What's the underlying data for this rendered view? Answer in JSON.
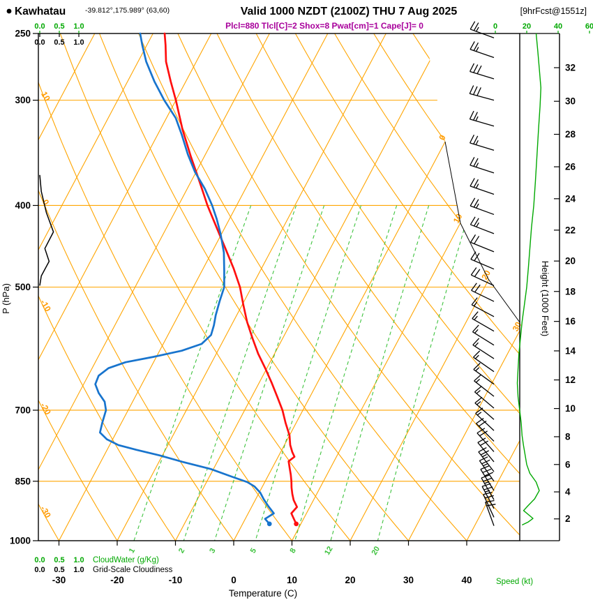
{
  "header": {
    "station": "Kawhatau",
    "coords": "-39.812°,175.989° (63,60)",
    "valid": "Valid 1000 NZDT (2100Z) THU 7 Aug 2025",
    "forecast_info": "[9hrFcst@1551z]",
    "params": "Plcl=880 Tlcl[C]=2 Shox=8 Pwat[cm]=1 Cape[J]= 0"
  },
  "axes": {
    "pressure_label": "P (hPa)",
    "pressure_ticks": [
      250,
      300,
      400,
      500,
      700,
      850,
      1000
    ],
    "temp_label": "Temperature (C)",
    "temp_ticks": [
      -30,
      -20,
      -10,
      0,
      10,
      20,
      30,
      40
    ],
    "height_label": "Height (1000 Feet)",
    "height_ticks": [
      2,
      4,
      6,
      8,
      10,
      12,
      14,
      16,
      18,
      20,
      22,
      24,
      26,
      28,
      30,
      32
    ],
    "speed_label": "Speed (kt)",
    "speed_ticks": [
      0,
      20,
      40,
      60
    ],
    "cloudwater_label": "CloudWater (g/Kg)",
    "cloudwater_ticks": [
      "0.0",
      "0.5",
      "1.0"
    ],
    "cloudiness_label": "Grid-Scale Cloudiness",
    "cloudiness_ticks": [
      "0.0",
      "0.5",
      "1.0"
    ]
  },
  "grid": {
    "isobars": [
      300,
      400,
      500,
      700,
      850
    ],
    "isotherm_min": -120,
    "isotherm_max": 40,
    "isotherm_step": 10,
    "isotherm_labels": [
      0,
      10,
      20,
      30
    ],
    "adiabat_min": -40,
    "adiabat_max": 150,
    "adiabat_step": 10,
    "adiabat_labels": [
      10,
      0,
      -10,
      -20,
      -30
    ],
    "mixing_ratio_lines": [
      1,
      2,
      3,
      5,
      8,
      12,
      20
    ]
  },
  "colors": {
    "grid_orange": "#FFA500",
    "mixing_green": "#3DC23D",
    "green": "#00A800",
    "temperature_red": "#FF0F0F",
    "dewpoint_blue": "#1874CD",
    "param_purple": "#A8009B"
  },
  "chart_data": {
    "type": "skew-t log-p sounding",
    "pressure_hpa_range": [
      1000,
      250
    ],
    "temperature_axis_range_c": [
      -35,
      45
    ],
    "temperature_profile_c": [
      [
        955,
        9.2
      ],
      [
        940,
        8.2
      ],
      [
        928,
        7.4
      ],
      [
        912,
        7.8
      ],
      [
        895,
        6.6
      ],
      [
        880,
        5.8
      ],
      [
        865,
        5.1
      ],
      [
        850,
        4.5
      ],
      [
        835,
        3.8
      ],
      [
        820,
        3.0
      ],
      [
        805,
        2.2
      ],
      [
        795,
        2.8
      ],
      [
        785,
        2.0
      ],
      [
        770,
        1.0
      ],
      [
        750,
        0.0
      ],
      [
        725,
        -1.8
      ],
      [
        700,
        -3.5
      ],
      [
        675,
        -5.6
      ],
      [
        650,
        -7.8
      ],
      [
        625,
        -10.2
      ],
      [
        600,
        -12.8
      ],
      [
        575,
        -15.2
      ],
      [
        550,
        -17.6
      ],
      [
        525,
        -19.8
      ],
      [
        500,
        -22.0
      ],
      [
        475,
        -24.8
      ],
      [
        450,
        -28.0
      ],
      [
        425,
        -31.4
      ],
      [
        400,
        -35.0
      ],
      [
        375,
        -38.5
      ],
      [
        350,
        -42.3
      ],
      [
        325,
        -46.2
      ],
      [
        300,
        -50.0
      ],
      [
        285,
        -52.6
      ],
      [
        270,
        -55.2
      ],
      [
        258,
        -56.8
      ],
      [
        250,
        -58.0
      ]
    ],
    "dewpoint_profile_c": [
      [
        955,
        4.6
      ],
      [
        942,
        3.4
      ],
      [
        928,
        4.4
      ],
      [
        910,
        2.8
      ],
      [
        893,
        1.4
      ],
      [
        877,
        0.2
      ],
      [
        862,
        -1.4
      ],
      [
        852,
        -3.0
      ],
      [
        840,
        -6.0
      ],
      [
        822,
        -10.5
      ],
      [
        806,
        -16.0
      ],
      [
        792,
        -20.5
      ],
      [
        780,
        -25.0
      ],
      [
        770,
        -28.5
      ],
      [
        758,
        -31.0
      ],
      [
        744,
        -32.8
      ],
      [
        724,
        -33.3
      ],
      [
        700,
        -33.8
      ],
      [
        684,
        -34.8
      ],
      [
        668,
        -36.6
      ],
      [
        652,
        -38.0
      ],
      [
        637,
        -38.2
      ],
      [
        624,
        -37.2
      ],
      [
        614,
        -34.8
      ],
      [
        605,
        -30.5
      ],
      [
        595,
        -26.2
      ],
      [
        584,
        -23.4
      ],
      [
        570,
        -22.6
      ],
      [
        555,
        -23.0
      ],
      [
        540,
        -23.6
      ],
      [
        520,
        -24.2
      ],
      [
        500,
        -24.7
      ],
      [
        478,
        -26.2
      ],
      [
        455,
        -27.9
      ],
      [
        432,
        -30.2
      ],
      [
        415,
        -32.2
      ],
      [
        400,
        -34.2
      ],
      [
        382,
        -37.0
      ],
      [
        365,
        -40.2
      ],
      [
        348,
        -43.0
      ],
      [
        330,
        -45.8
      ],
      [
        315,
        -48.4
      ],
      [
        300,
        -52.0
      ],
      [
        285,
        -55.4
      ],
      [
        270,
        -58.6
      ],
      [
        258,
        -60.8
      ],
      [
        250,
        -62.2
      ]
    ],
    "wind_speed_profile_kt": [
      [
        958,
        17
      ],
      [
        950,
        21
      ],
      [
        941,
        24
      ],
      [
        931,
        21
      ],
      [
        921,
        18
      ],
      [
        908,
        21
      ],
      [
        892,
        25
      ],
      [
        872,
        28
      ],
      [
        852,
        26
      ],
      [
        832,
        22
      ],
      [
        812,
        20
      ],
      [
        792,
        19
      ],
      [
        772,
        18
      ],
      [
        750,
        17
      ],
      [
        725,
        16.5
      ],
      [
        700,
        15.5
      ],
      [
        675,
        14.5
      ],
      [
        650,
        14
      ],
      [
        625,
        14.5
      ],
      [
        600,
        15
      ],
      [
        575,
        16
      ],
      [
        550,
        17
      ],
      [
        525,
        18.5
      ],
      [
        500,
        20
      ],
      [
        475,
        21
      ],
      [
        450,
        22
      ],
      [
        425,
        23
      ],
      [
        400,
        24.5
      ],
      [
        375,
        25.5
      ],
      [
        350,
        26.5
      ],
      [
        325,
        27.5
      ],
      [
        305,
        28.5
      ],
      [
        290,
        29
      ],
      [
        275,
        28
      ],
      [
        262,
        27
      ],
      [
        250,
        26
      ]
    ],
    "wind_barbs": [
      [
        960,
        18,
        340
      ],
      [
        938,
        22,
        335
      ],
      [
        916,
        24,
        332
      ],
      [
        894,
        26,
        330
      ],
      [
        872,
        28,
        328
      ],
      [
        850,
        26,
        325
      ],
      [
        828,
        23,
        322
      ],
      [
        806,
        21,
        320
      ],
      [
        784,
        19,
        318
      ],
      [
        762,
        18,
        315
      ],
      [
        740,
        17,
        313
      ],
      [
        718,
        16,
        311
      ],
      [
        696,
        15,
        310
      ],
      [
        674,
        15,
        308
      ],
      [
        652,
        14,
        306
      ],
      [
        630,
        14,
        305
      ],
      [
        608,
        15,
        303
      ],
      [
        586,
        15,
        302
      ],
      [
        564,
        16,
        300
      ],
      [
        542,
        17,
        298
      ],
      [
        520,
        18,
        296
      ],
      [
        498,
        20,
        295
      ],
      [
        476,
        21,
        293
      ],
      [
        454,
        22,
        292
      ],
      [
        432,
        23,
        291
      ],
      [
        410,
        24,
        290
      ],
      [
        388,
        25,
        289
      ],
      [
        366,
        26,
        288
      ],
      [
        344,
        26,
        287
      ],
      [
        322,
        27,
        286
      ],
      [
        300,
        29,
        285
      ],
      [
        283,
        28,
        287
      ],
      [
        267,
        27,
        289
      ],
      [
        253,
        26,
        290
      ]
    ],
    "grid_scale_cloudiness_profile": [
      [
        368,
        0
      ],
      [
        385,
        0.04
      ],
      [
        408,
        0.17
      ],
      [
        430,
        0.35
      ],
      [
        450,
        0.13
      ],
      [
        466,
        0.24
      ],
      [
        485,
        0.04
      ],
      [
        498,
        0
      ]
    ]
  }
}
